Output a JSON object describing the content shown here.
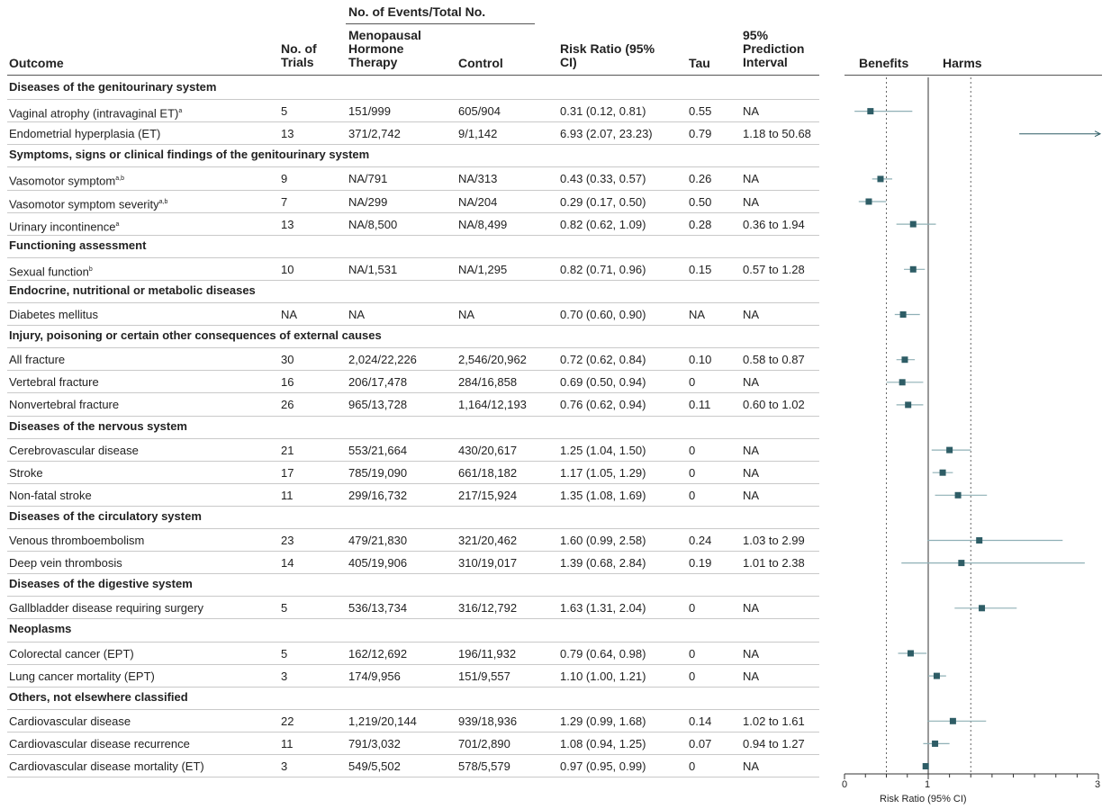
{
  "headers": {
    "outcome": "Outcome",
    "trials": "No. of Trials",
    "events_group": "No. of Events/Total No.",
    "mht": "Menopausal Hormone Therapy",
    "control": "Control",
    "rr": "Risk Ratio (95% CI)",
    "tau": "Tau",
    "pi": "95% Prediction Interval",
    "benefits": "Benefits",
    "harms": "Harms"
  },
  "rows": [
    {
      "type": "section",
      "label": "Diseases of the genitourinary system"
    },
    {
      "type": "data",
      "outcome": "Vaginal atrophy (intravaginal ET)",
      "sup": "a",
      "trials": "5",
      "mht": "151/999",
      "control": "605/904",
      "rr_text": "0.31 (0.12, 0.81)",
      "tau": "0.55",
      "pi": "NA"
    },
    {
      "type": "data",
      "outcome": "Endometrial hyperplasia (ET)",
      "sup": "",
      "trials": "13",
      "mht": "371/2,742",
      "control": "9/1,142",
      "rr_text": "6.93 (2.07, 23.23)",
      "tau": "0.79",
      "pi": "1.18 to 50.68"
    },
    {
      "type": "section",
      "label": "Symptoms, signs or clinical findings of the genitourinary system"
    },
    {
      "type": "data",
      "outcome": "Vasomotor symptom",
      "sup": "a,b",
      "trials": "9",
      "mht": "NA/791",
      "control": "NA/313",
      "rr_text": "0.43 (0.33, 0.57)",
      "tau": "0.26",
      "pi": "NA"
    },
    {
      "type": "data",
      "outcome": "Vasomotor symptom severity",
      "sup": "a,b",
      "trials": "7",
      "mht": "NA/299",
      "control": "NA/204",
      "rr_text": "0.29 (0.17, 0.50)",
      "tau": "0.50",
      "pi": "NA"
    },
    {
      "type": "data",
      "outcome": "Urinary incontinence",
      "sup": "a",
      "trials": "13",
      "mht": "NA/8,500",
      "control": "NA/8,499",
      "rr_text": "0.82 (0.62, 1.09)",
      "tau": "0.28",
      "pi": "0.36 to 1.94"
    },
    {
      "type": "section",
      "label": "Functioning assessment"
    },
    {
      "type": "data",
      "outcome": "Sexual function",
      "sup": "b",
      "trials": "10",
      "mht": "NA/1,531",
      "control": "NA/1,295",
      "rr_text": "0.82 (0.71, 0.96)",
      "tau": "0.15",
      "pi": "0.57 to 1.28"
    },
    {
      "type": "section",
      "label": "Endocrine, nutritional or metabolic diseases"
    },
    {
      "type": "data",
      "outcome": "Diabetes mellitus",
      "sup": "",
      "trials": "NA",
      "mht": "NA",
      "control": "NA",
      "rr_text": "0.70 (0.60, 0.90)",
      "tau": "NA",
      "pi": "NA"
    },
    {
      "type": "section",
      "label": "Injury, poisoning or certain other consequences of external causes"
    },
    {
      "type": "data",
      "outcome": "All fracture",
      "sup": "",
      "trials": "30",
      "mht": "2,024/22,226",
      "control": "2,546/20,962",
      "rr_text": "0.72 (0.62, 0.84)",
      "tau": "0.10",
      "pi": "0.58 to 0.87"
    },
    {
      "type": "data",
      "outcome": "Vertebral fracture",
      "sup": "",
      "trials": "16",
      "mht": "206/17,478",
      "control": "284/16,858",
      "rr_text": "0.69 (0.50, 0.94)",
      "tau": "0",
      "pi": "NA"
    },
    {
      "type": "data",
      "outcome": "Nonvertebral fracture",
      "sup": "",
      "trials": "26",
      "mht": "965/13,728",
      "control": "1,164/12,193",
      "rr_text": "0.76 (0.62, 0.94)",
      "tau": "0.11",
      "pi": "0.60 to 1.02"
    },
    {
      "type": "section",
      "label": "Diseases of the nervous system"
    },
    {
      "type": "data",
      "outcome": "Cerebrovascular disease",
      "sup": "",
      "trials": "21",
      "mht": "553/21,664",
      "control": "430/20,617",
      "rr_text": "1.25 (1.04, 1.50)",
      "tau": "0",
      "pi": "NA"
    },
    {
      "type": "data",
      "outcome": "Stroke",
      "sup": "",
      "trials": "17",
      "mht": "785/19,090",
      "control": "661/18,182",
      "rr_text": "1.17 (1.05, 1.29)",
      "tau": "0",
      "pi": "NA"
    },
    {
      "type": "data",
      "outcome": "Non-fatal stroke",
      "sup": "",
      "trials": "11",
      "mht": "299/16,732",
      "control": "217/15,924",
      "rr_text": "1.35 (1.08, 1.69)",
      "tau": "0",
      "pi": "NA"
    },
    {
      "type": "section",
      "label": "Diseases of the circulatory system"
    },
    {
      "type": "data",
      "outcome": "Venous thromboembolism",
      "sup": "",
      "trials": "23",
      "mht": "479/21,830",
      "control": "321/20,462",
      "rr_text": "1.60 (0.99, 2.58)",
      "tau": "0.24",
      "pi": "1.03 to 2.99"
    },
    {
      "type": "data",
      "outcome": "Deep vein thrombosis",
      "sup": "",
      "trials": "14",
      "mht": "405/19,906",
      "control": "310/19,017",
      "rr_text": "1.39 (0.68, 2.84)",
      "tau": "0.19",
      "pi": "1.01 to 2.38"
    },
    {
      "type": "section",
      "label": "Diseases of the digestive system"
    },
    {
      "type": "data",
      "outcome": "Gallbladder disease requiring surgery",
      "sup": "",
      "trials": "5",
      "mht": "536/13,734",
      "control": "316/12,792",
      "rr_text": "1.63 (1.31, 2.04)",
      "tau": "0",
      "pi": "NA"
    },
    {
      "type": "section",
      "label": "Neoplasms"
    },
    {
      "type": "data",
      "outcome": "Colorectal cancer (EPT)",
      "sup": "",
      "trials": "5",
      "mht": "162/12,692",
      "control": "196/11,932",
      "rr_text": "0.79 (0.64, 0.98)",
      "tau": "0",
      "pi": "NA"
    },
    {
      "type": "data",
      "outcome": "Lung cancer mortality (EPT)",
      "sup": "",
      "trials": "3",
      "mht": "174/9,956",
      "control": "151/9,557",
      "rr_text": "1.10 (1.00, 1.21)",
      "tau": "0",
      "pi": "NA"
    },
    {
      "type": "section",
      "label": "Others, not elsewhere classified"
    },
    {
      "type": "data",
      "outcome": "Cardiovascular disease",
      "sup": "",
      "trials": "22",
      "mht": "1,219/20,144",
      "control": "939/18,936",
      "rr_text": "1.29 (0.99, 1.68)",
      "tau": "0.14",
      "pi": "1.02 to 1.61"
    },
    {
      "type": "data",
      "outcome": "Cardiovascular disease recurrence",
      "sup": "",
      "trials": "11",
      "mht": "791/3,032",
      "control": "701/2,890",
      "rr_text": "1.08 (0.94, 1.25)",
      "tau": "0.07",
      "pi": "0.94 to 1.27"
    },
    {
      "type": "data",
      "outcome": "Cardiovascular disease mortality (ET)",
      "sup": "",
      "trials": "3",
      "mht": "549/5,502",
      "control": "578/5,579",
      "rr_text": "0.97 (0.95, 0.99)",
      "tau": "0",
      "pi": "NA"
    }
  ],
  "chart_data": {
    "type": "scatter",
    "xlabel": "Risk Ratio (95% CI)",
    "x_ticks": [
      "0",
      "1",
      "3"
    ],
    "xlim": [
      0,
      3
    ],
    "reference_line": 1,
    "marker_color": "#2e5d66",
    "line_color": "#8fb0b6",
    "series": [
      {
        "values": [
          {
            "label": "Vaginal atrophy (intravaginal ET)",
            "rr": 0.31,
            "lo": 0.12,
            "hi": 0.81
          },
          {
            "label": "Endometrial hyperplasia (ET)",
            "rr": 6.93,
            "lo": 2.07,
            "hi": 23.23
          },
          {
            "label": "Vasomotor symptom",
            "rr": 0.43,
            "lo": 0.33,
            "hi": 0.57
          },
          {
            "label": "Vasomotor symptom severity",
            "rr": 0.29,
            "lo": 0.17,
            "hi": 0.5
          },
          {
            "label": "Urinary incontinence",
            "rr": 0.82,
            "lo": 0.62,
            "hi": 1.09
          },
          {
            "label": "Sexual function",
            "rr": 0.82,
            "lo": 0.71,
            "hi": 0.96
          },
          {
            "label": "Diabetes mellitus",
            "rr": 0.7,
            "lo": 0.6,
            "hi": 0.9
          },
          {
            "label": "All fracture",
            "rr": 0.72,
            "lo": 0.62,
            "hi": 0.84
          },
          {
            "label": "Vertebral fracture",
            "rr": 0.69,
            "lo": 0.5,
            "hi": 0.94
          },
          {
            "label": "Nonvertebral fracture",
            "rr": 0.76,
            "lo": 0.62,
            "hi": 0.94
          },
          {
            "label": "Cerebrovascular disease",
            "rr": 1.25,
            "lo": 1.04,
            "hi": 1.5
          },
          {
            "label": "Stroke",
            "rr": 1.17,
            "lo": 1.05,
            "hi": 1.29
          },
          {
            "label": "Non-fatal stroke",
            "rr": 1.35,
            "lo": 1.08,
            "hi": 1.69
          },
          {
            "label": "Venous thromboembolism",
            "rr": 1.6,
            "lo": 0.99,
            "hi": 2.58
          },
          {
            "label": "Deep vein thrombosis",
            "rr": 1.39,
            "lo": 0.68,
            "hi": 2.84
          },
          {
            "label": "Gallbladder disease requiring surgery",
            "rr": 1.63,
            "lo": 1.31,
            "hi": 2.04
          },
          {
            "label": "Colorectal cancer (EPT)",
            "rr": 0.79,
            "lo": 0.64,
            "hi": 0.98
          },
          {
            "label": "Lung cancer mortality (EPT)",
            "rr": 1.1,
            "lo": 1.0,
            "hi": 1.21
          },
          {
            "label": "Cardiovascular disease",
            "rr": 1.29,
            "lo": 0.99,
            "hi": 1.68
          },
          {
            "label": "Cardiovascular disease recurrence",
            "rr": 1.08,
            "lo": 0.94,
            "hi": 1.25
          },
          {
            "label": "Cardiovascular disease mortality (ET)",
            "rr": 0.97,
            "lo": 0.95,
            "hi": 0.99
          }
        ]
      }
    ]
  }
}
